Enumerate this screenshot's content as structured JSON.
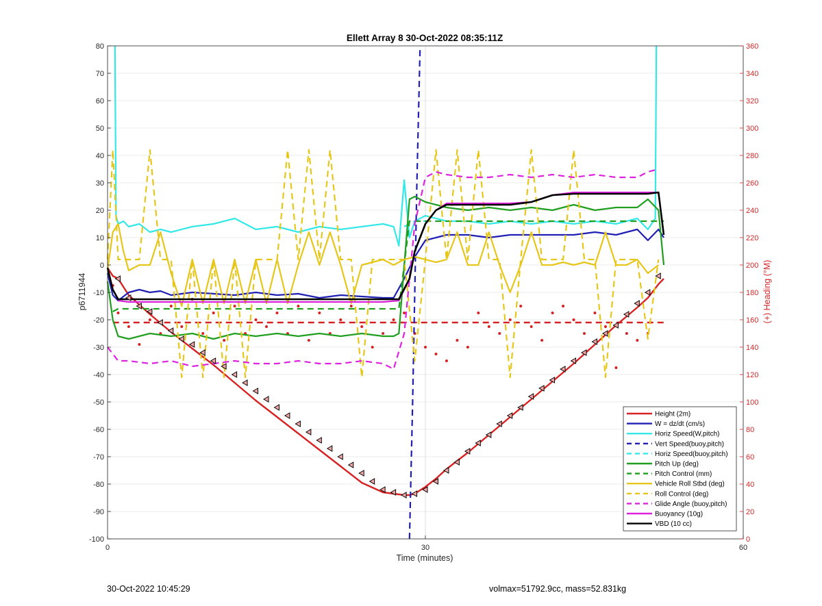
{
  "footer": {
    "left": "30-Oct-2022 10:45:29",
    "right": "volmax=51792.9cc, mass=52.831kg"
  },
  "chart_data": {
    "type": "line",
    "title": "Ellett Array 8 30-Oct-2022 08:35:11Z",
    "xlabel": "Time (minutes)",
    "ylabel": "p6711944",
    "y2label": "(+) Heading (°M)",
    "xlim": [
      0,
      60
    ],
    "ylim": [
      -100,
      80
    ],
    "y2lim": [
      0,
      360
    ],
    "xticks": [
      0,
      30,
      60
    ],
    "yticks": [
      -100,
      -90,
      -80,
      -70,
      -60,
      -50,
      -40,
      -30,
      -20,
      -10,
      0,
      10,
      20,
      30,
      40,
      50,
      60,
      70,
      80
    ],
    "y2ticks": [
      0,
      20,
      40,
      60,
      80,
      100,
      120,
      140,
      160,
      180,
      200,
      220,
      240,
      260,
      280,
      300,
      320,
      340,
      360
    ],
    "grid": "x",
    "legend_position": "bottom-right",
    "colors": {
      "height": "#d62222",
      "w": "#1f1fb4",
      "horiz_speed": "#35e8e8",
      "pitch": "#1f9e1f",
      "roll": "#e6c619",
      "glide": "#dd22dd",
      "buoyancy": "#dd22dd",
      "vbd": "#000000",
      "heading": "#d62222"
    },
    "series": [
      {
        "name": "Height (2m)",
        "style": "solid",
        "color": "#d62222",
        "x": [
          0,
          0.5,
          1,
          2,
          4,
          6,
          8,
          10,
          12,
          14,
          16,
          18,
          20,
          22,
          24,
          26,
          27,
          28,
          28.5,
          29,
          30,
          31,
          32,
          34,
          36,
          38,
          40,
          42,
          44,
          46,
          48,
          50,
          51,
          52,
          52.5
        ],
        "y": [
          -1,
          -4,
          -5,
          -11,
          -18,
          -24.5,
          -30.5,
          -36.5,
          -43,
          -49.5,
          -55.5,
          -61.5,
          -67.5,
          -73.5,
          -79.5,
          -83,
          -83.5,
          -84,
          -84,
          -83.5,
          -81,
          -78,
          -74.5,
          -68.5,
          -62,
          -55.5,
          -49,
          -42.5,
          -36,
          -29,
          -22,
          -15.5,
          -12,
          -7,
          -5
        ]
      },
      {
        "name": "W = dz/dt (cm/s)",
        "style": "solid",
        "color": "#1f1fb4",
        "x": [
          0,
          0.5,
          1,
          2,
          3,
          4,
          5,
          6,
          8,
          10,
          12,
          14,
          16,
          18,
          20,
          22,
          24,
          26,
          27,
          28,
          29,
          30,
          31,
          32,
          34,
          36,
          38,
          40,
          42,
          44,
          46,
          48,
          50,
          51,
          52,
          52.5
        ],
        "y": [
          -3,
          -11,
          -13,
          -10,
          -9,
          -10,
          -9.5,
          -11,
          -10,
          -10.5,
          -11,
          -10,
          -11,
          -10.5,
          -12,
          -11,
          -11.5,
          -12,
          -12,
          -5,
          3,
          9,
          10,
          11,
          11,
          10,
          11,
          11,
          11,
          11,
          12,
          11,
          13,
          9,
          13,
          10
        ]
      },
      {
        "name": "Horiz Speed(W,pitch)",
        "style": "solid",
        "color": "#35e8e8",
        "x": [
          0.7,
          0.8,
          1,
          1.5,
          2,
          3,
          4,
          5,
          6,
          8,
          10,
          12,
          14,
          16,
          18,
          20,
          22,
          24,
          26,
          27,
          27.5,
          28,
          28.5,
          29,
          30,
          31,
          32,
          34,
          36,
          38,
          40,
          42,
          44,
          46,
          48,
          50,
          51,
          51.7,
          51.8
        ],
        "y": [
          80,
          18,
          15,
          16,
          14,
          15,
          12,
          13,
          12,
          14,
          15,
          17,
          13,
          14,
          12,
          14,
          13,
          14,
          15,
          14,
          7,
          31,
          10,
          16,
          18,
          17,
          16,
          16,
          15,
          16,
          15,
          16,
          15,
          16,
          15,
          17,
          13,
          17,
          80
        ]
      },
      {
        "name": "Vert Speed(buoy,pitch)",
        "style": "dashed",
        "color": "#1f1fb4",
        "x": [
          28.5,
          28.8,
          29.2,
          29.5
        ],
        "y": [
          -100,
          -50,
          30,
          80
        ]
      },
      {
        "name": "Horiz Speed(buoy,pitch)",
        "style": "dashed",
        "color": "#35e8e8",
        "x": [
          28,
          29,
          30
        ],
        "y": [
          14,
          16,
          16
        ]
      },
      {
        "name": "Pitch Up (deg)",
        "style": "solid",
        "color": "#1f9e1f",
        "x": [
          0,
          0.5,
          1,
          2,
          4,
          6,
          8,
          10,
          12,
          14,
          16,
          18,
          20,
          22,
          24,
          26,
          27,
          27.5,
          28.5,
          29,
          30,
          31,
          32,
          34,
          36,
          38,
          40,
          42,
          44,
          46,
          48,
          50,
          51,
          52,
          52.5
        ],
        "y": [
          -6,
          -20,
          -26,
          -27,
          -25,
          -26,
          -25,
          -27,
          -25,
          -26,
          -25,
          -26,
          -25,
          -26,
          -25,
          -26,
          -26,
          -25,
          24,
          25,
          23,
          22,
          21,
          20,
          21,
          20,
          21,
          20,
          22,
          20,
          21,
          21,
          24,
          20,
          0
        ]
      },
      {
        "name": "Pitch Control (mm)",
        "style": "dashed",
        "color": "#1f9e1f",
        "x": [
          0.5,
          1,
          27.5,
          28.5,
          29,
          52.5
        ],
        "y": [
          -17,
          -16,
          -16,
          16,
          16,
          16
        ]
      },
      {
        "name": "Vehicle Roll Stbd (deg)",
        "style": "solid",
        "color": "#e6c619",
        "x": [
          0,
          0.5,
          1,
          1.5,
          2,
          3,
          4,
          5,
          6,
          7,
          8,
          9,
          10,
          11,
          12,
          13,
          14,
          15,
          16,
          17,
          18,
          19,
          20,
          21,
          22,
          23,
          24,
          25,
          26,
          27,
          28,
          29,
          30,
          31,
          32,
          33,
          34,
          35,
          36,
          37,
          38,
          39,
          40,
          41,
          42,
          43,
          44,
          45,
          46,
          47,
          48,
          49,
          50,
          51,
          52
        ],
        "y": [
          -2,
          12,
          15,
          5,
          -2,
          0,
          0,
          12,
          -3,
          -15,
          2,
          -14,
          2,
          -14,
          2,
          -14,
          2,
          -14,
          2,
          -14,
          0,
          12,
          0,
          12,
          0,
          -14,
          0,
          1,
          2,
          0,
          2,
          3,
          2,
          1,
          2,
          12,
          0,
          0,
          12,
          0,
          -10,
          0,
          12,
          0,
          0,
          1,
          0,
          1,
          0,
          12,
          0,
          0,
          2,
          -3,
          0
        ]
      },
      {
        "name": "Roll Control (deg)",
        "style": "dashed",
        "color": "#e6c619",
        "x": [
          0,
          0.5,
          1,
          1.5,
          2,
          3,
          4,
          5,
          6,
          7,
          8,
          9,
          10,
          11,
          12,
          13,
          14,
          15,
          16,
          17,
          18,
          19,
          20,
          21,
          22,
          23,
          24,
          25,
          26,
          27,
          28,
          29,
          30,
          31,
          32,
          33,
          34,
          35,
          36,
          37,
          38,
          39,
          40,
          41,
          42,
          43,
          44,
          45,
          46,
          47,
          48,
          49,
          50,
          51,
          52
        ],
        "y": [
          2,
          42,
          2,
          2,
          2,
          2,
          42,
          2,
          2,
          -41,
          2,
          -41,
          2,
          -41,
          2,
          -41,
          2,
          2,
          2,
          42,
          2,
          42,
          2,
          42,
          2,
          2,
          -41,
          2,
          2,
          2,
          2,
          -35,
          2,
          42,
          2,
          42,
          2,
          42,
          2,
          2,
          -41,
          2,
          42,
          2,
          2,
          2,
          42,
          2,
          2,
          -41,
          2,
          2,
          2,
          -27,
          2
        ]
      },
      {
        "name": "Glide Angle (buoy,pitch)",
        "style": "dashed",
        "color": "#dd22dd",
        "x": [
          0,
          1,
          2,
          4,
          6,
          8,
          10,
          12,
          14,
          16,
          18,
          20,
          22,
          24,
          26,
          27,
          28,
          29,
          30,
          31,
          32,
          34,
          36,
          38,
          40,
          42,
          44,
          46,
          48,
          50,
          51,
          52
        ],
        "y": [
          -30,
          -35,
          -35,
          -36,
          -35,
          -37,
          -36,
          -35,
          -36,
          -36,
          -35,
          -36,
          -36,
          -35,
          -36,
          -38,
          -25,
          15,
          32,
          34,
          33,
          32,
          32,
          33,
          32,
          33,
          32,
          33,
          32,
          32,
          34,
          35
        ]
      },
      {
        "name": "Buoyancy (10g)",
        "style": "solid",
        "color": "#dd22dd",
        "x": [
          1,
          2,
          4,
          26,
          27.5,
          28.5,
          29,
          30,
          31,
          32,
          34,
          36,
          38,
          40,
          42,
          44,
          46,
          48,
          50,
          51,
          52
        ],
        "y": [
          -13,
          -13.5,
          -13.5,
          -13.5,
          -13,
          -5,
          5,
          15,
          20,
          22.5,
          22.5,
          22.5,
          22.5,
          23,
          25.5,
          26.5,
          26.5,
          26.5,
          26.5,
          26.5,
          26.5
        ]
      },
      {
        "name": "VBD (10 cc)",
        "style": "solid",
        "color": "#000000",
        "x": [
          0,
          0.5,
          1,
          2,
          4,
          26,
          27.5,
          28.5,
          29,
          30,
          31,
          32,
          34,
          36,
          38,
          40,
          42,
          44,
          46,
          48,
          50,
          51,
          52,
          52.5
        ],
        "y": [
          -1,
          -9,
          -12.5,
          -12.5,
          -12.5,
          -12.5,
          -12.5,
          -5,
          5,
          15,
          20,
          22,
          22,
          22,
          22,
          23,
          25.5,
          26,
          26,
          26,
          26,
          26,
          26.5,
          11
        ]
      }
    ],
    "heading": {
      "axis": "right",
      "color": "#d62222",
      "mean_line": 158,
      "x": [
        0.5,
        1,
        2,
        3,
        4,
        5,
        6,
        7,
        8,
        9,
        10,
        11,
        12,
        13,
        14,
        15,
        16,
        17,
        18,
        19,
        20,
        21,
        22,
        23,
        24,
        25,
        26,
        27,
        28,
        29,
        30,
        31,
        32,
        33,
        34,
        35,
        36,
        37,
        38,
        39,
        40,
        41,
        42,
        43,
        44,
        45,
        46,
        47,
        48,
        49,
        50,
        51
      ],
      "y": [
        185,
        165,
        155,
        142,
        160,
        150,
        170,
        155,
        175,
        150,
        165,
        145,
        170,
        150,
        160,
        155,
        165,
        150,
        170,
        145,
        165,
        150,
        160,
        170,
        155,
        140,
        150,
        160,
        165,
        150,
        140,
        135,
        130,
        145,
        140,
        165,
        155,
        150,
        160,
        170,
        155,
        145,
        165,
        170,
        160,
        150,
        165,
        155,
        125,
        150,
        145,
        150
      ]
    },
    "markers": {
      "symbol": "triangle",
      "x": [
        1,
        2,
        3,
        4,
        5,
        6,
        7,
        8,
        9,
        10,
        11,
        12,
        13,
        14,
        15,
        16,
        17,
        18,
        19,
        20,
        21,
        22,
        23,
        24,
        25,
        26,
        27,
        28,
        29,
        30,
        31,
        32,
        33,
        34,
        35,
        36,
        37,
        38,
        39,
        40,
        41,
        42,
        43,
        44,
        45,
        46,
        47,
        48,
        49,
        50,
        51,
        52
      ],
      "y": [
        -5,
        -12,
        -15,
        -17,
        -21,
        -24,
        -27,
        -29,
        -32,
        -35,
        -37,
        -40,
        -43,
        -46,
        -49,
        -52,
        -55,
        -58,
        -61,
        -64,
        -67,
        -70,
        -73,
        -76,
        -79,
        -82,
        -83,
        -84,
        -83.5,
        -82,
        -79,
        -75,
        -72,
        -68,
        -65,
        -62,
        -58,
        -55,
        -52,
        -48,
        -45,
        -42,
        -38,
        -35,
        -32,
        -28,
        -25,
        -22,
        -18,
        -14,
        -10,
        -4
      ]
    },
    "legend": [
      "Height (2m)",
      "W = dz/dt (cm/s)",
      "Horiz Speed(W,pitch)",
      "Vert Speed(buoy,pitch)",
      "Horiz Speed(buoy,pitch)",
      "Pitch Up (deg)",
      "Pitch Control (mm)",
      "Vehicle Roll Stbd (deg)",
      "Roll Control (deg)",
      "Glide Angle (buoy,pitch)",
      "Buoyancy (10g)",
      "VBD (10 cc)"
    ]
  }
}
